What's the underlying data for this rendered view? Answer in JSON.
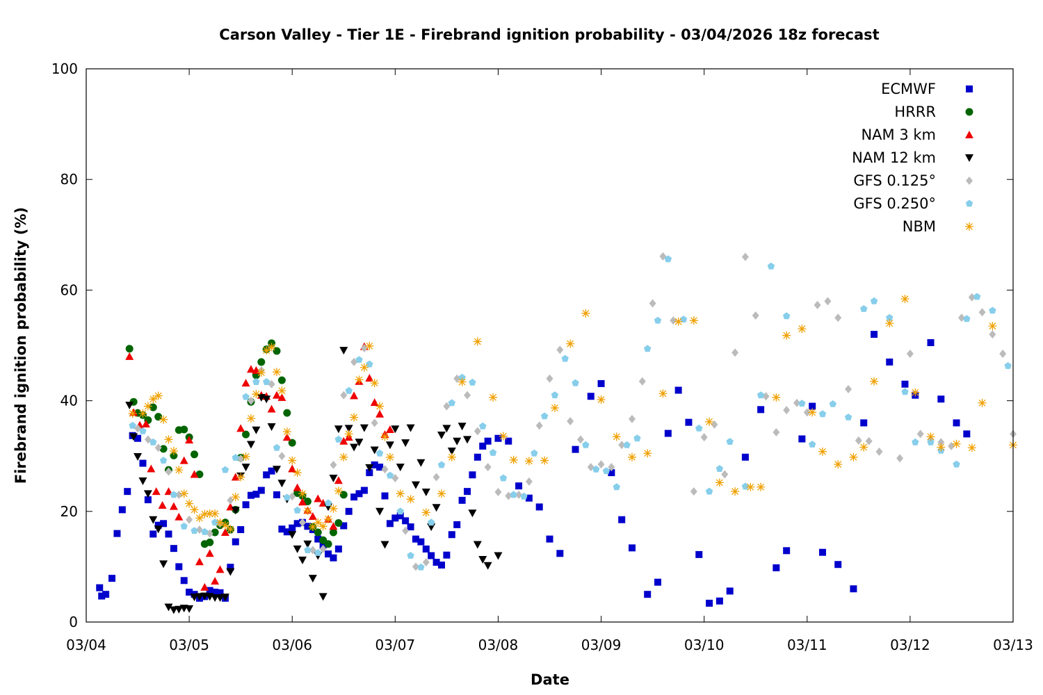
{
  "chart_data": {
    "type": "scatter",
    "title": "Carson Valley - Tier 1E - Firebrand ignition probability - 03/04/2026 18z forecast",
    "xlabel": "Date",
    "ylabel": "Firebrand ignition probability (%)",
    "xlim": [
      0,
      9
    ],
    "ylim": [
      0,
      100
    ],
    "x_units": "days after 03/04 00:00",
    "x_tick_labels": [
      "03/04",
      "03/05",
      "03/06",
      "03/07",
      "03/08",
      "03/09",
      "03/10",
      "03/11",
      "03/12",
      "03/13"
    ],
    "y_ticks": [
      0,
      20,
      40,
      60,
      80,
      100
    ],
    "legend_position": "top-right",
    "grid": false,
    "series": [
      {
        "name": "ECMWF",
        "color": "#0000cc",
        "marker": "square",
        "x": [
          0.13,
          0.15,
          0.19,
          0.25,
          0.3,
          0.35,
          0.4,
          0.45,
          0.5,
          0.55,
          0.6,
          0.65,
          0.7,
          0.75,
          0.8,
          0.85,
          0.9,
          0.95,
          1.0,
          1.05,
          1.1,
          1.15,
          1.2,
          1.25,
          1.3,
          1.35,
          1.4,
          1.45,
          1.5,
          1.55,
          1.6,
          1.65,
          1.7,
          1.75,
          1.8,
          1.85,
          1.9,
          1.95,
          2.0,
          2.05,
          2.1,
          2.15,
          2.2,
          2.25,
          2.3,
          2.35,
          2.4,
          2.45,
          2.5,
          2.55,
          2.6,
          2.65,
          2.7,
          2.75,
          2.8,
          2.85,
          2.9,
          2.95,
          3.0,
          3.05,
          3.1,
          3.15,
          3.2,
          3.25,
          3.3,
          3.35,
          3.4,
          3.45,
          3.5,
          3.55,
          3.6,
          3.65,
          3.7,
          3.75,
          3.8,
          3.85,
          3.9,
          4.0,
          4.1,
          4.2,
          4.3,
          4.4,
          4.5,
          4.6,
          4.75,
          4.9,
          5.0,
          5.1,
          5.2,
          5.3,
          5.45,
          5.55,
          5.65,
          5.75,
          5.85,
          5.95,
          6.05,
          6.15,
          6.25,
          6.4,
          6.55,
          6.7,
          6.8,
          6.95,
          7.05,
          7.15,
          7.3,
          7.45,
          7.55,
          7.65,
          7.8,
          7.95,
          8.05,
          8.2,
          8.3,
          8.45,
          8.55
        ],
        "y": [
          6.2,
          4.7,
          5.0,
          7.9,
          16.0,
          20.3,
          23.6,
          33.7,
          33.2,
          28.7,
          22.1,
          15.9,
          17.5,
          17.8,
          15.9,
          13.3,
          10.0,
          7.5,
          5.4,
          5.0,
          4.3,
          4.6,
          5.7,
          5.4,
          5.3,
          4.3,
          9.9,
          14.5,
          16.7,
          21.2,
          22.9,
          23.1,
          23.8,
          26.6,
          27.3,
          23.0,
          16.8,
          16.3,
          17.0,
          17.8,
          18.0,
          17.3,
          16.7,
          15.0,
          13.8,
          12.3,
          11.6,
          13.2,
          17.4,
          20.0,
          22.6,
          23.2,
          23.8,
          27.0,
          28.4,
          28.0,
          22.8,
          17.8,
          18.8,
          19.2,
          18.3,
          17.2,
          15.0,
          14.5,
          13.2,
          12.0,
          10.8,
          10.3,
          12.1,
          15.8,
          17.6,
          22.0,
          23.6,
          26.6,
          29.8,
          31.8,
          32.7,
          33.2,
          32.7,
          24.6,
          22.4,
          20.8,
          15.0,
          12.4,
          31.2,
          40.8,
          43.1,
          27.0,
          18.5,
          13.4,
          5.0,
          7.2,
          34.1,
          41.9,
          36.1,
          12.2,
          3.4,
          3.8,
          5.6,
          29.8,
          38.4,
          9.8,
          12.9,
          33.1,
          39.0,
          12.6,
          10.4,
          6.0,
          36.0,
          52.0,
          47.0,
          43.0,
          41.0,
          50.5,
          40.3,
          36.0,
          34.0
        ]
      },
      {
        "name": "HRRR",
        "color": "#006400",
        "marker": "circle",
        "x": [
          0.42,
          0.46,
          0.5,
          0.55,
          0.6,
          0.65,
          0.7,
          0.75,
          0.8,
          0.85,
          0.9,
          0.95,
          1.0,
          1.05,
          1.1,
          1.15,
          1.2,
          1.25,
          1.3,
          1.35,
          1.4,
          1.45,
          1.5,
          1.55,
          1.6,
          1.65,
          1.7,
          1.75,
          1.8,
          1.85,
          1.9,
          1.95,
          2.0,
          2.05,
          2.1,
          2.15,
          2.2,
          2.25,
          2.3,
          2.35,
          2.4,
          2.45,
          2.5
        ],
        "y": [
          49.4,
          39.8,
          37.8,
          37.4,
          36.5,
          38.8,
          37.1,
          31.3,
          27.5,
          30.1,
          34.7,
          34.8,
          33.4,
          30.3,
          26.7,
          14.1,
          14.4,
          16.2,
          17.5,
          18.0,
          16.7,
          20.3,
          29.7,
          33.9,
          39.8,
          44.6,
          47.0,
          49.3,
          50.4,
          49.0,
          43.7,
          37.8,
          32.4,
          23.3,
          22.8,
          21.8,
          17.2,
          16.2,
          14.8,
          14.1,
          16.2,
          17.9,
          23.0
        ]
      },
      {
        "name": "NAM 3 km",
        "color": "#ee0000",
        "marker": "triangle-up",
        "x": [
          0.42,
          0.46,
          0.52,
          0.58,
          0.63,
          0.68,
          0.74,
          0.8,
          0.85,
          0.9,
          0.95,
          1.0,
          1.05,
          1.1,
          1.15,
          1.2,
          1.25,
          1.3,
          1.35,
          1.4,
          1.45,
          1.5,
          1.55,
          1.6,
          1.65,
          1.7,
          1.75,
          1.8,
          1.85,
          1.9,
          1.95,
          2.0,
          2.05,
          2.1,
          2.15,
          2.2,
          2.25,
          2.3,
          2.35,
          2.4,
          2.45,
          2.5,
          2.55,
          2.6,
          2.65,
          2.7,
          2.75,
          2.8,
          2.85,
          2.9,
          2.95
        ],
        "y": [
          48.0,
          37.9,
          35.6,
          35.8,
          27.7,
          23.6,
          21.1,
          23.6,
          20.9,
          19.0,
          29.2,
          32.9,
          26.7,
          10.9,
          6.3,
          12.4,
          7.4,
          9.5,
          16.2,
          20.8,
          26.2,
          35.0,
          43.2,
          45.7,
          45.5,
          41.0,
          40.8,
          38.5,
          41.0,
          40.6,
          33.4,
          27.7,
          24.3,
          21.7,
          20.2,
          19.1,
          22.3,
          21.5,
          18.6,
          17.3,
          25.6,
          32.7,
          33.4,
          40.9,
          43.5,
          49.8,
          44.1,
          39.7,
          37.6,
          33.9,
          34.8
        ]
      },
      {
        "name": "NAM 12 km",
        "color": "#000000",
        "marker": "triangle-down",
        "x": [
          0.42,
          0.46,
          0.5,
          0.55,
          0.6,
          0.65,
          0.7,
          0.75,
          0.8,
          0.85,
          0.9,
          0.95,
          1.0,
          1.05,
          1.1,
          1.15,
          1.2,
          1.25,
          1.3,
          1.35,
          1.4,
          1.45,
          1.5,
          1.55,
          1.6,
          1.65,
          1.7,
          1.75,
          1.8,
          1.85,
          1.9,
          1.95,
          2.0,
          2.05,
          2.1,
          2.15,
          2.2,
          2.25,
          2.3,
          2.35,
          2.4,
          2.45,
          2.5,
          2.55,
          2.6,
          2.65,
          2.7,
          2.75,
          2.8,
          2.85,
          2.9,
          2.95,
          3.0,
          3.05,
          3.1,
          3.15,
          3.2,
          3.25,
          3.3,
          3.35,
          3.4,
          3.45,
          3.5,
          3.55,
          3.6,
          3.65,
          3.7,
          3.75,
          3.8,
          3.85,
          3.9,
          4.0
        ],
        "y": [
          39.2,
          33.5,
          29.9,
          25.5,
          23.2,
          18.5,
          16.8,
          10.5,
          2.7,
          2.2,
          2.3,
          2.5,
          2.4,
          4.5,
          4.6,
          4.7,
          4.6,
          4.4,
          4.4,
          4.5,
          9.1,
          20.2,
          26.4,
          28.0,
          32.1,
          34.7,
          40.6,
          40.3,
          35.3,
          27.6,
          25.1,
          22.2,
          15.8,
          13.2,
          11.2,
          14.1,
          7.9,
          12.0,
          4.6,
          20.8,
          26.0,
          34.9,
          49.1,
          35.0,
          31.6,
          32.5,
          35.1,
          27.9,
          31.1,
          20.0,
          14.0,
          32.0,
          34.9,
          28.0,
          32.4,
          35.1,
          24.8,
          28.8,
          23.5,
          17.2,
          20.7,
          33.8,
          35.0,
          30.9,
          32.7,
          35.4,
          33.0,
          19.7,
          14.0,
          11.3,
          10.2,
          12.0
        ]
      },
      {
        "name": "GFS 0.125°",
        "color": "#bbbbbb",
        "marker": "diamond",
        "x": [
          0.5,
          0.6,
          0.7,
          0.8,
          0.9,
          1.0,
          1.1,
          1.2,
          1.3,
          1.4,
          1.5,
          1.6,
          1.7,
          1.8,
          1.9,
          2.0,
          2.1,
          2.2,
          2.3,
          2.4,
          2.5,
          2.6,
          2.7,
          2.8,
          2.9,
          3.0,
          3.1,
          3.2,
          3.3,
          3.4,
          3.5,
          3.6,
          3.7,
          3.8,
          3.9,
          4.0,
          4.1,
          4.2,
          4.3,
          4.4,
          4.5,
          4.6,
          4.7,
          4.8,
          4.9,
          5.0,
          5.1,
          5.2,
          5.3,
          5.4,
          5.5,
          5.6,
          5.7,
          5.9,
          6.0,
          6.1,
          6.2,
          6.3,
          6.4,
          6.5,
          6.6,
          6.7,
          6.8,
          6.9,
          7.0,
          7.1,
          7.2,
          7.3,
          7.4,
          7.5,
          7.6,
          7.7,
          7.9,
          8.0,
          8.1,
          8.2,
          8.3,
          8.4,
          8.5,
          8.6,
          8.7,
          8.8,
          8.9,
          9.0
        ],
        "y": [
          35.0,
          33.0,
          31.5,
          27.2,
          23.0,
          18.5,
          16.7,
          16.0,
          17.8,
          22.0,
          29.5,
          40.0,
          45.5,
          43.0,
          30.0,
          22.7,
          18.0,
          13.0,
          13.2,
          28.4,
          41.0,
          47.0,
          49.5,
          36.0,
          27.6,
          26.0,
          16.5,
          10.0,
          10.8,
          26.2,
          39.0,
          44.0,
          41.0,
          34.5,
          28.0,
          23.5,
          22.8,
          23.0,
          25.4,
          35.5,
          44.0,
          49.2,
          36.3,
          33.0,
          28.0,
          28.5,
          28.0,
          32.0,
          36.7,
          43.5,
          57.6,
          66.1,
          54.5,
          23.6,
          33.4,
          35.7,
          26.7,
          48.7,
          66.0,
          55.4,
          40.8,
          34.3,
          38.3,
          39.6,
          37.9,
          57.3,
          58.0,
          55.0,
          42.1,
          32.8,
          32.7,
          30.8,
          29.6,
          48.5,
          34.0,
          33.0,
          32.5,
          31.8,
          55.0,
          58.7,
          56.0,
          52.0,
          48.5,
          34.0
        ]
      },
      {
        "name": "GFS 0.250°",
        "color": "#87ceeb",
        "marker": "pentagon",
        "x": [
          0.45,
          0.55,
          0.65,
          0.75,
          0.85,
          0.95,
          1.05,
          1.15,
          1.25,
          1.35,
          1.45,
          1.55,
          1.65,
          1.75,
          1.85,
          1.95,
          2.05,
          2.15,
          2.25,
          2.35,
          2.45,
          2.55,
          2.65,
          2.75,
          2.85,
          2.95,
          3.05,
          3.15,
          3.25,
          3.35,
          3.45,
          3.55,
          3.65,
          3.75,
          3.85,
          3.95,
          4.05,
          4.15,
          4.25,
          4.35,
          4.45,
          4.55,
          4.65,
          4.75,
          4.85,
          4.95,
          5.05,
          5.15,
          5.25,
          5.35,
          5.45,
          5.55,
          5.65,
          5.8,
          5.95,
          6.05,
          6.15,
          6.25,
          6.4,
          6.55,
          6.65,
          6.8,
          6.95,
          7.05,
          7.15,
          7.25,
          7.4,
          7.55,
          7.65,
          7.8,
          7.95,
          8.05,
          8.2,
          8.3,
          8.45,
          8.55,
          8.65,
          8.8,
          8.95
        ],
        "y": [
          35.5,
          34.5,
          32.5,
          29.2,
          23.0,
          17.3,
          16.5,
          16.3,
          18.0,
          27.5,
          29.7,
          40.7,
          43.4,
          43.4,
          31.5,
          22.5,
          20.2,
          13.0,
          12.5,
          21.5,
          33.0,
          41.8,
          47.4,
          46.6,
          30.5,
          26.5,
          20.0,
          12.0,
          9.9,
          18.0,
          28.4,
          39.6,
          44.2,
          43.3,
          35.4,
          30.6,
          26.0,
          23.0,
          22.7,
          30.5,
          37.2,
          41.0,
          47.6,
          43.2,
          32.0,
          27.6,
          27.3,
          24.4,
          32.0,
          33.2,
          49.4,
          54.5,
          65.6,
          54.7,
          35.0,
          23.6,
          27.7,
          32.6,
          24.5,
          41.0,
          64.3,
          55.3,
          39.5,
          32.1,
          37.6,
          39.4,
          37.0,
          56.6,
          58.0,
          55.0,
          41.6,
          32.5,
          32.5,
          31.0,
          28.5,
          54.8,
          58.8,
          56.3,
          46.3
        ]
      },
      {
        "name": "NBM",
        "color": "#f0a000",
        "marker": "asterisk",
        "x": [
          0.45,
          0.55,
          0.6,
          0.65,
          0.7,
          0.75,
          0.8,
          0.85,
          0.9,
          0.95,
          1.0,
          1.05,
          1.1,
          1.15,
          1.2,
          1.25,
          1.3,
          1.35,
          1.4,
          1.45,
          1.5,
          1.55,
          1.6,
          1.65,
          1.7,
          1.75,
          1.8,
          1.85,
          1.9,
          1.95,
          2.0,
          2.05,
          2.1,
          2.15,
          2.2,
          2.25,
          2.3,
          2.35,
          2.4,
          2.45,
          2.5,
          2.55,
          2.6,
          2.65,
          2.7,
          2.75,
          2.8,
          2.85,
          2.9,
          2.95,
          3.05,
          3.15,
          3.3,
          3.45,
          3.55,
          3.65,
          3.8,
          3.95,
          4.05,
          4.15,
          4.3,
          4.45,
          4.55,
          4.7,
          4.85,
          5.0,
          5.15,
          5.3,
          5.45,
          5.6,
          5.75,
          5.9,
          6.05,
          6.15,
          6.3,
          6.45,
          6.55,
          6.7,
          6.8,
          6.95,
          7.05,
          7.15,
          7.3,
          7.45,
          7.55,
          7.65,
          7.8,
          7.95,
          8.05,
          8.2,
          8.3,
          8.45,
          8.6,
          8.7,
          8.8,
          9.0
        ],
        "y": [
          37.7,
          37.7,
          39.0,
          40.3,
          40.9,
          36.6,
          33.0,
          30.9,
          27.5,
          23.2,
          21.4,
          20.3,
          18.8,
          19.5,
          19.6,
          19.6,
          18.0,
          17.5,
          16.8,
          22.6,
          26.2,
          29.9,
          36.8,
          41.2,
          45.1,
          49.1,
          49.7,
          45.2,
          41.8,
          34.4,
          29.2,
          27.0,
          23.2,
          20.1,
          17.2,
          18.0,
          17.3,
          18.6,
          20.5,
          23.7,
          29.8,
          34.0,
          37.0,
          43.8,
          46.0,
          49.9,
          43.2,
          39.0,
          33.5,
          29.8,
          23.2,
          22.2,
          19.8,
          23.2,
          29.8,
          43.4,
          50.7,
          40.6,
          33.6,
          29.3,
          29.1,
          29.2,
          38.7,
          50.3,
          55.8,
          40.2,
          33.5,
          29.8,
          30.5,
          41.3,
          54.3,
          54.5,
          36.2,
          25.2,
          23.6,
          24.4,
          24.4,
          40.6,
          51.8,
          53.0,
          37.9,
          30.8,
          28.5,
          29.8,
          31.6,
          43.5,
          54.0,
          58.4,
          41.5,
          33.5,
          31.6,
          32.2,
          31.5,
          39.6,
          53.5,
          32.0
        ]
      }
    ]
  }
}
